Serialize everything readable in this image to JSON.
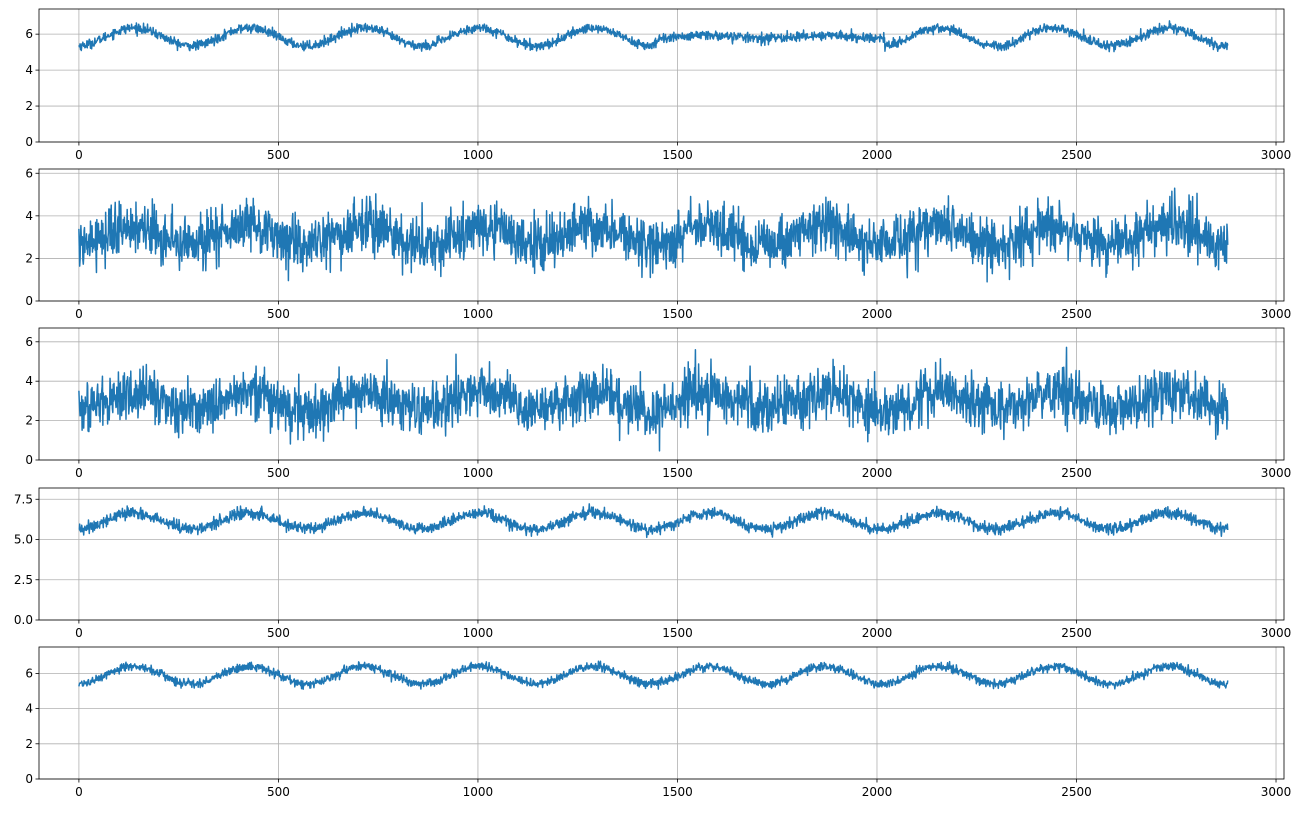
{
  "chart_data": [
    {
      "type": "line",
      "title": "",
      "xlabel": "",
      "ylabel": "",
      "xlim": [
        -100,
        3020
      ],
      "ylim": [
        0,
        7.4
      ],
      "xticks": [
        0,
        500,
        1000,
        1500,
        2000,
        2500,
        3000
      ],
      "yticks": [
        0,
        2,
        4,
        6
      ],
      "ytick_labels": [
        "0",
        "2",
        "4",
        "6"
      ],
      "grid": true,
      "legend": "none",
      "series": [
        {
          "color": "#1f77b4",
          "n_points": 2880,
          "x_range": [
            0,
            2879
          ],
          "baseline": 5.85,
          "noise": 0.13,
          "wave_segments": [
            {
              "x_start": 0,
              "x_end": 1450,
              "amplitude": 0.5,
              "period": 288,
              "phase": -1.45
            },
            {
              "x_start": 1450,
              "x_end": 2020,
              "amplitude": 0.08,
              "period": 288,
              "phase": -1.45
            },
            {
              "x_start": 2020,
              "x_end": 2880,
              "amplitude": 0.5,
              "period": 288,
              "phase": -1.45
            }
          ],
          "value_range": [
            5.0,
            6.8
          ]
        }
      ]
    },
    {
      "type": "line",
      "title": "",
      "xlabel": "",
      "ylabel": "",
      "xlim": [
        -100,
        3020
      ],
      "ylim": [
        0,
        6.2
      ],
      "xticks": [
        0,
        500,
        1000,
        1500,
        2000,
        2500,
        3000
      ],
      "yticks": [
        0,
        2,
        4,
        6
      ],
      "ytick_labels": [
        "0",
        "2",
        "4",
        "6"
      ],
      "grid": true,
      "legend": "none",
      "series": [
        {
          "color": "#1f77b4",
          "n_points": 2880,
          "x_range": [
            0,
            2879
          ],
          "baseline": 3.05,
          "noise": 0.6,
          "wave_segments": [
            {
              "x_start": 0,
              "x_end": 2880,
              "amplitude": 0.45,
              "period": 288,
              "phase": -1.45
            }
          ],
          "value_range": [
            0.9,
            5.7
          ]
        }
      ]
    },
    {
      "type": "line",
      "title": "",
      "xlabel": "",
      "ylabel": "",
      "xlim": [
        -100,
        3020
      ],
      "ylim": [
        0,
        6.7
      ],
      "xticks": [
        0,
        500,
        1000,
        1500,
        2000,
        2500,
        3000
      ],
      "yticks": [
        0,
        2,
        4,
        6
      ],
      "ytick_labels": [
        "0",
        "2",
        "4",
        "6"
      ],
      "grid": true,
      "legend": "none",
      "series": [
        {
          "color": "#1f77b4",
          "n_points": 2880,
          "x_range": [
            0,
            2879
          ],
          "baseline": 3.0,
          "noise": 0.65,
          "wave_segments": [
            {
              "x_start": 0,
              "x_end": 2880,
              "amplitude": 0.45,
              "period": 288,
              "phase": -1.45
            }
          ],
          "value_range": [
            0.3,
            6.2
          ]
        }
      ]
    },
    {
      "type": "line",
      "title": "",
      "xlabel": "",
      "ylabel": "",
      "xlim": [
        -100,
        3020
      ],
      "ylim": [
        0,
        8.2
      ],
      "xticks": [
        0,
        500,
        1000,
        1500,
        2000,
        2500,
        3000
      ],
      "yticks": [
        0,
        2.5,
        5.0,
        7.5
      ],
      "ytick_labels": [
        "0.0",
        "2.5",
        "5.0",
        "7.5"
      ],
      "grid": true,
      "legend": "none",
      "series": [
        {
          "color": "#1f77b4",
          "n_points": 2880,
          "x_range": [
            0,
            2879
          ],
          "baseline": 6.15,
          "noise": 0.17,
          "wave_segments": [
            {
              "x_start": 0,
              "x_end": 2880,
              "amplitude": 0.5,
              "period": 288,
              "phase": -1.45
            }
          ],
          "value_range": [
            5.0,
            7.4
          ]
        }
      ]
    },
    {
      "type": "line",
      "title": "",
      "xlabel": "",
      "ylabel": "",
      "xlim": [
        -100,
        3020
      ],
      "ylim": [
        0,
        7.5
      ],
      "xticks": [
        0,
        500,
        1000,
        1500,
        2000,
        2500,
        3000
      ],
      "yticks": [
        0,
        2,
        4,
        6
      ],
      "ytick_labels": [
        "0",
        "2",
        "4",
        "6"
      ],
      "grid": true,
      "legend": "none",
      "series": [
        {
          "color": "#1f77b4",
          "n_points": 2880,
          "x_range": [
            0,
            2879
          ],
          "baseline": 5.9,
          "noise": 0.12,
          "wave_segments": [
            {
              "x_start": 0,
              "x_end": 2880,
              "amplitude": 0.5,
              "period": 288,
              "phase": -1.45
            }
          ],
          "value_range": [
            5.1,
            6.9
          ]
        }
      ]
    }
  ]
}
